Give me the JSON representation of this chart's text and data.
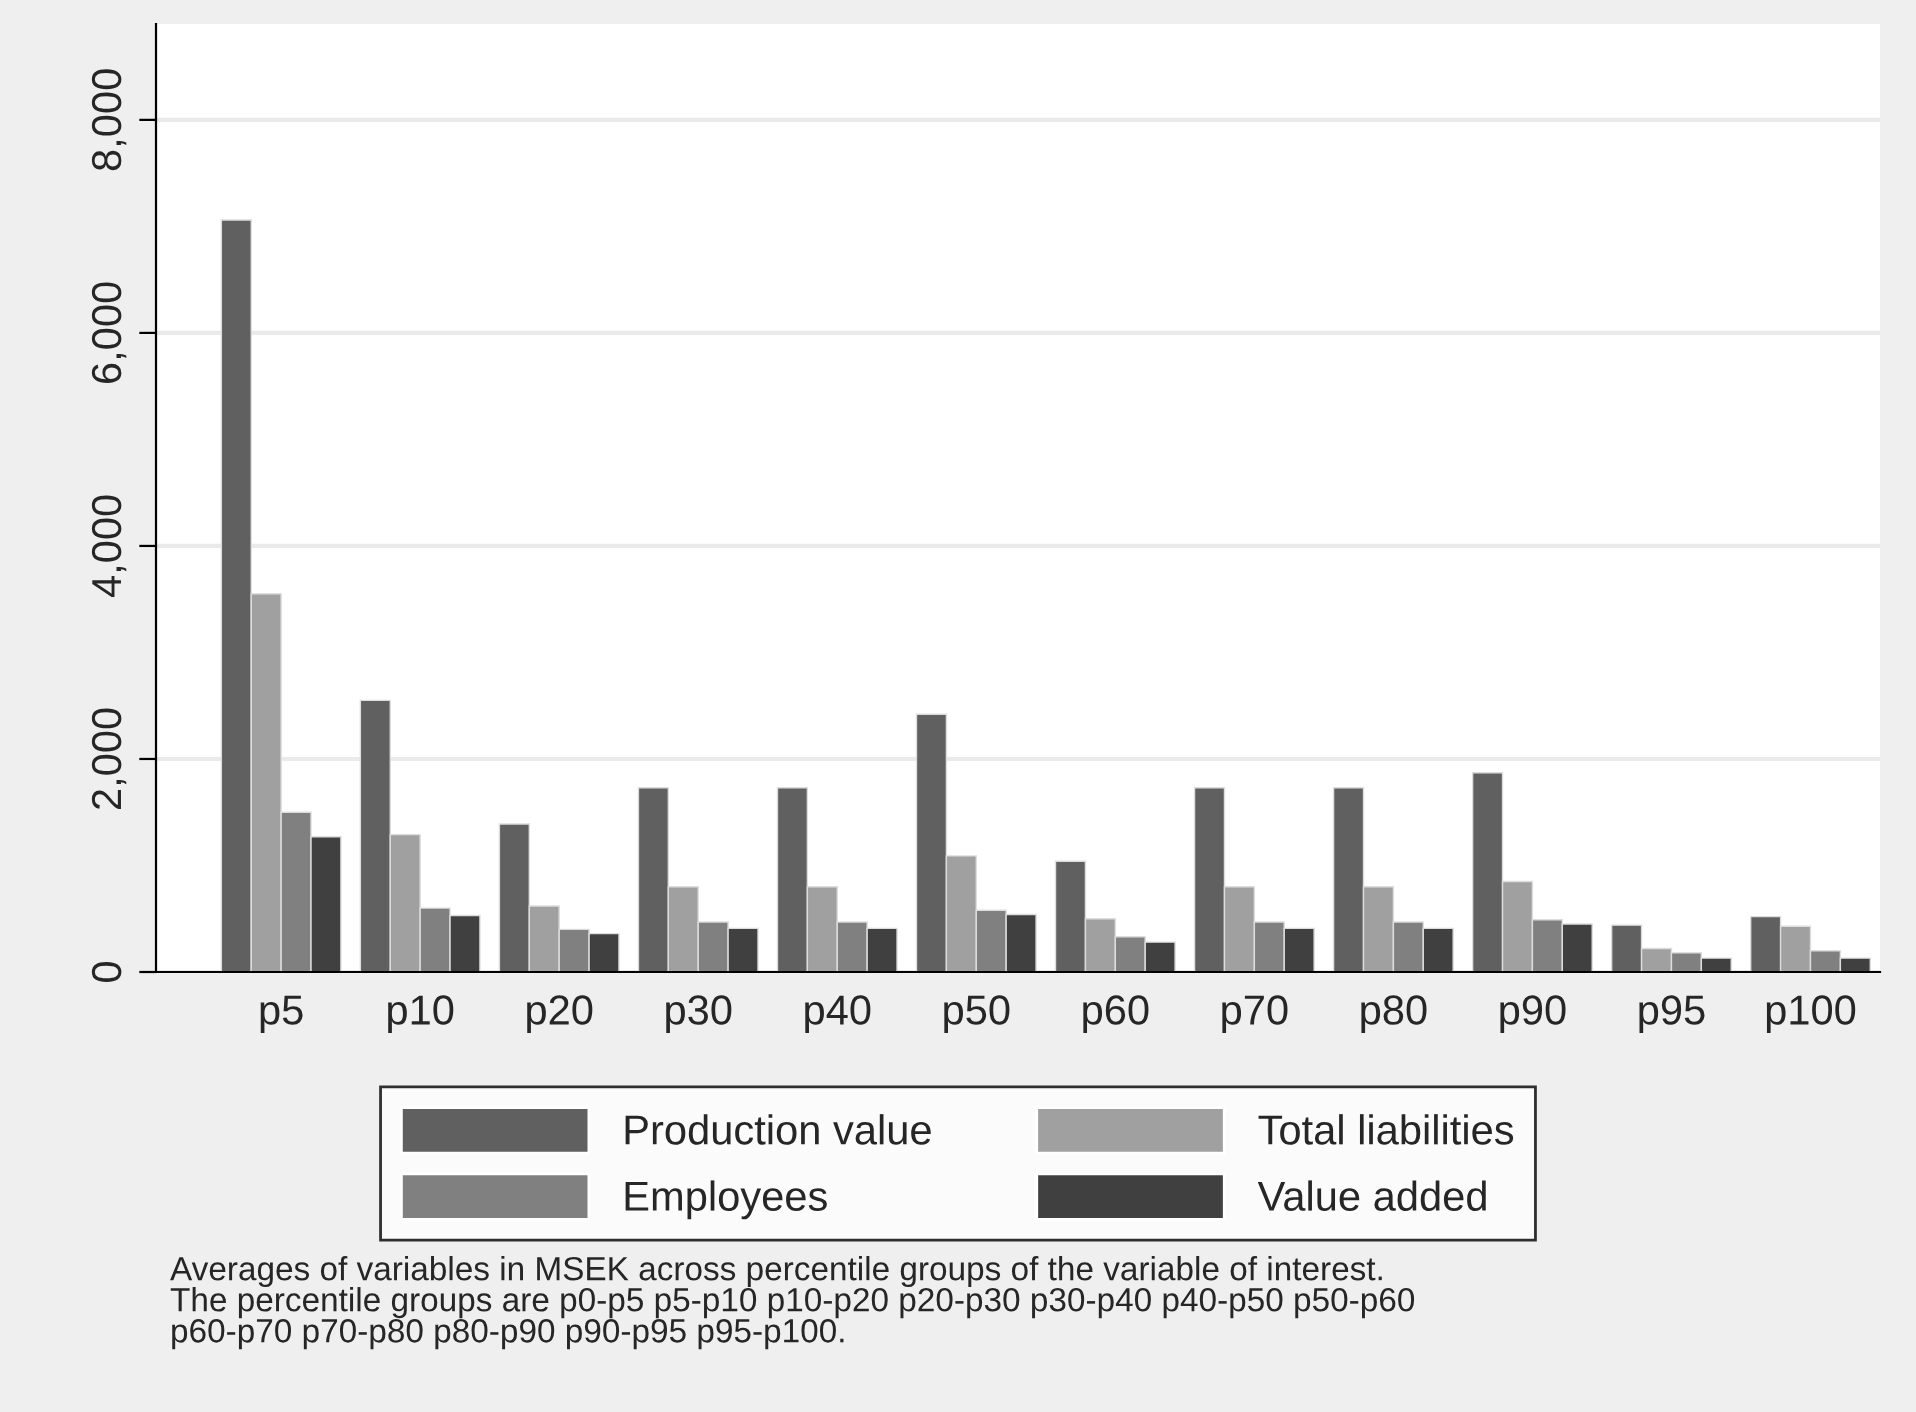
{
  "chart_data": {
    "type": "bar",
    "categories": [
      "p5",
      "p10",
      "p20",
      "p30",
      "p40",
      "p50",
      "p60",
      "p70",
      "p80",
      "p90",
      "p95",
      "p100"
    ],
    "series": [
      {
        "name": "Production value",
        "color": "#606060",
        "values": [
          7060,
          2550,
          1390,
          1730,
          1730,
          2420,
          1040,
          1730,
          1730,
          1870,
          440,
          520
        ]
      },
      {
        "name": "Total liabilities",
        "color": "#a0a0a0",
        "values": [
          3550,
          1290,
          620,
          800,
          800,
          1090,
          500,
          800,
          800,
          850,
          220,
          430
        ]
      },
      {
        "name": "Employees",
        "color": "#808080",
        "values": [
          1500,
          600,
          400,
          470,
          470,
          580,
          330,
          470,
          470,
          490,
          180,
          200
        ]
      },
      {
        "name": "Value added",
        "color": "#404040",
        "values": [
          1270,
          530,
          360,
          410,
          410,
          540,
          280,
          410,
          410,
          450,
          130,
          130
        ]
      }
    ],
    "ylim": [
      0,
      8900
    ],
    "yticks": [
      {
        "value": 0,
        "label": "0"
      },
      {
        "value": 2000,
        "label": "2,000"
      },
      {
        "value": 4000,
        "label": "4,000"
      },
      {
        "value": 6000,
        "label": "6,000"
      },
      {
        "value": 8000,
        "label": "8,000"
      }
    ],
    "grid": "y",
    "legend": "bottom",
    "annotations": [
      "Averages of variables in MSEK across percentile groups of the variable of interest.\nThe percentile groups are p0-p5 p5-p10 p10-p20 p20-p30 p30-p40 p40-p50 p50-p60\np60-p70 p70-p80 p80-p90 p90-p95 p95-p100."
    ]
  }
}
